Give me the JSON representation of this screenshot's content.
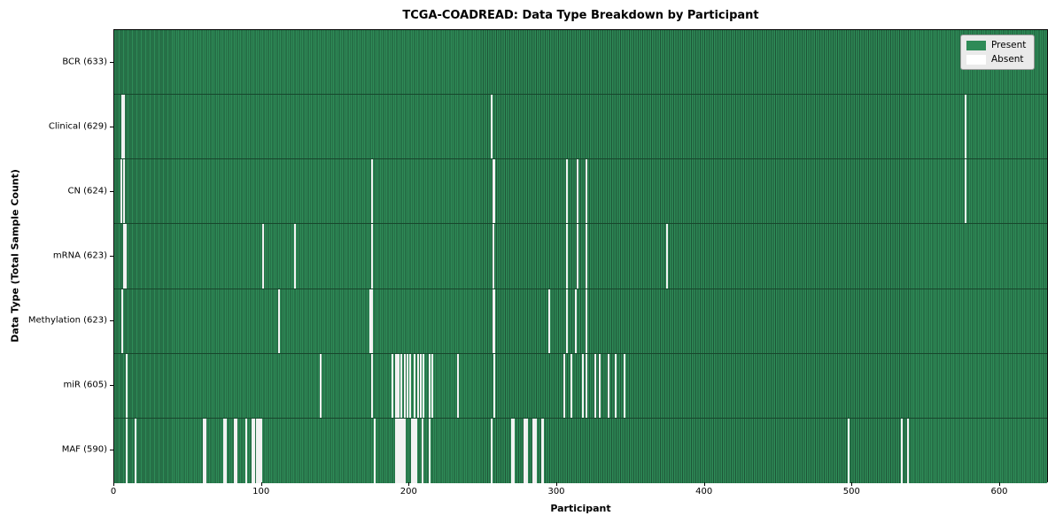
{
  "title": "TCGA-COADREAD: Data Type Breakdown by Participant",
  "axes": {
    "xlabel": "Participant",
    "ylabel": "Data Type (Total Sample Count)"
  },
  "legend": {
    "items": [
      {
        "label": "Present",
        "color": "#2e8b57"
      },
      {
        "label": "Absent",
        "color": "#ffffff"
      }
    ]
  },
  "colors": {
    "present": "#2e8b57",
    "present_edge": "#1e5437",
    "absent_stripe": "#f2f2f2",
    "plot_border": "#000000",
    "legend_bg": "#eaeaea"
  },
  "chart_data": {
    "type": "heatmap",
    "title": "TCGA-COADREAD: Data Type Breakdown by Participant",
    "xlabel": "Participant",
    "ylabel": "Data Type (Total Sample Count)",
    "x_range": [
      0,
      633
    ],
    "x_ticks": [
      0,
      100,
      200,
      300,
      400,
      500,
      600
    ],
    "legend": [
      "Present",
      "Absent"
    ],
    "grid": false,
    "legend_position": "upper right",
    "rows": [
      {
        "label": "BCR (633)",
        "data_type": "BCR",
        "present_count": 633,
        "absent_participants": []
      },
      {
        "label": "Clinical (629)",
        "data_type": "Clinical",
        "present_count": 629,
        "absent_participants": [
          5,
          6,
          255,
          576
        ]
      },
      {
        "label": "CN (624)",
        "data_type": "CN",
        "present_count": 624,
        "absent_participants": [
          4,
          6,
          174,
          256,
          257,
          306,
          313,
          319,
          576
        ]
      },
      {
        "label": "mRNA (623)",
        "data_type": "mRNA",
        "present_count": 623,
        "absent_participants": [
          6,
          7,
          100,
          122,
          174,
          256,
          306,
          313,
          319,
          374
        ]
      },
      {
        "label": "Methylation (623)",
        "data_type": "Methylation",
        "present_count": 623,
        "absent_participants": [
          5,
          111,
          173,
          174,
          256,
          257,
          294,
          306,
          312,
          319
        ]
      },
      {
        "label": "miR (605)",
        "data_type": "miR",
        "present_count": 605,
        "absent_participants": [
          8,
          139,
          174,
          188,
          190,
          191,
          192,
          194,
          196,
          198,
          200,
          203,
          205,
          207,
          209,
          213,
          215,
          232,
          257,
          304,
          309,
          317,
          319,
          325,
          328,
          334,
          339,
          345
        ]
      },
      {
        "label": "MAF (590)",
        "data_type": "MAF",
        "present_count": 590,
        "absent_participants": [
          8,
          14,
          60,
          61,
          74,
          75,
          81,
          82,
          89,
          93,
          94,
          96,
          97,
          98,
          99,
          176,
          190,
          191,
          192,
          193,
          194,
          195,
          196,
          201,
          202,
          203,
          204,
          208,
          213,
          255,
          269,
          270,
          277,
          278,
          279,
          283,
          284,
          285,
          289,
          290,
          497,
          533,
          537
        ]
      }
    ]
  }
}
